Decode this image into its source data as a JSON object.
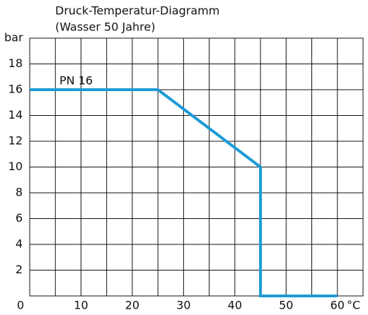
{
  "chart_data": {
    "type": "line",
    "title": "Druck-Temperatur-Diagramm",
    "subtitle": "(Wasser 50 Jahre)",
    "y_label": "bar",
    "x_label": "°C",
    "x": [
      0,
      25,
      45,
      45,
      60
    ],
    "series": [
      {
        "name": "PN 16",
        "color": "#1e9ad6",
        "values": [
          16,
          16,
          10,
          0,
          0
        ]
      }
    ],
    "xlim": [
      0,
      65
    ],
    "ylim": [
      0,
      20
    ],
    "xticks": [
      0,
      10,
      20,
      30,
      40,
      50,
      60
    ],
    "xminor": [
      5,
      15,
      25,
      35,
      45,
      55,
      65
    ],
    "yticks": [
      2,
      4,
      6,
      8,
      10,
      12,
      14,
      16,
      18
    ],
    "yminor": [
      20
    ],
    "grid": true
  }
}
